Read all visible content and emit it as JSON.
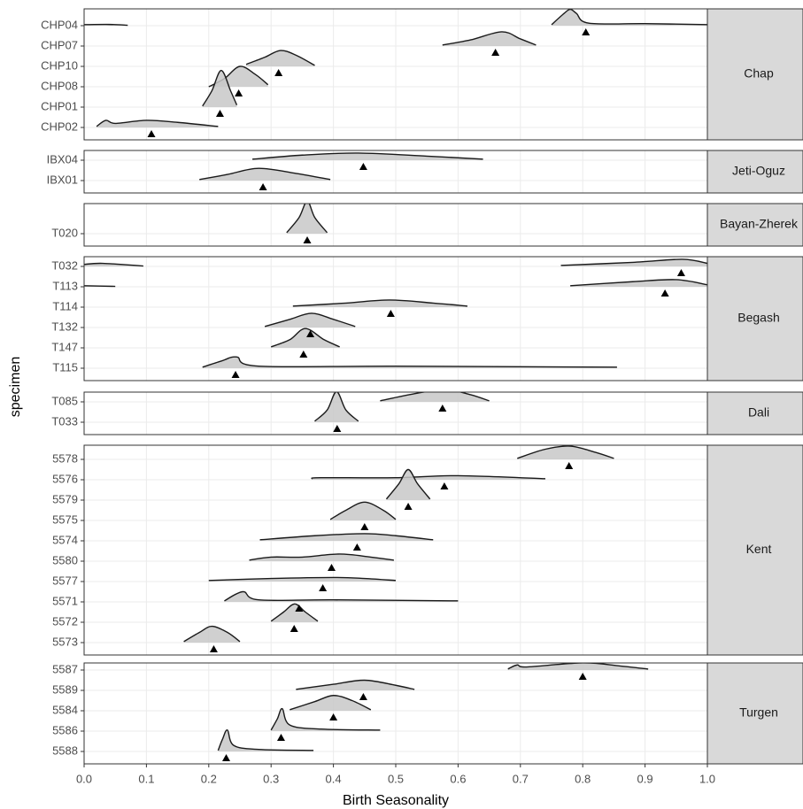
{
  "chart_data": {
    "type": "ridgeline",
    "x_label": "Birth Seasonality",
    "y_label": "specimen",
    "xlim": [
      0,
      1
    ],
    "xticks": [
      {
        "value": 0,
        "label": "0.0"
      },
      0.1,
      0.2,
      0.3,
      0.4,
      0.5,
      0.6,
      0.7,
      0.8,
      0.9,
      {
        "value": 1,
        "label": "1.0"
      }
    ],
    "grid": true,
    "fill_color": "#c8c8c8",
    "line_color": "#1a1a1a",
    "facets": [
      {
        "name": "Chap",
        "specimens": [
          {
            "name": "CHP04",
            "ridge_x": [
              0,
              0.04,
              0.07,
              null,
              0.75,
              0.77,
              0.78,
              0.79,
              0.81,
              0.9,
              1.0
            ],
            "ridge_h": [
              0.05,
              0.06,
              0.02,
              null,
              0.05,
              0.6,
              0.8,
              0.6,
              0.12,
              0.1,
              0.05
            ],
            "point": 0.805
          },
          {
            "name": "CHP07",
            "ridge_x": [
              0.575,
              0.62,
              0.67,
              0.7,
              0.725
            ],
            "ridge_h": [
              0.05,
              0.3,
              0.7,
              0.35,
              0.05
            ],
            "point": 0.66
          },
          {
            "name": "CHP10",
            "ridge_x": [
              0.26,
              0.29,
              0.315,
              0.34,
              0.37
            ],
            "ridge_h": [
              0.1,
              0.45,
              0.78,
              0.55,
              0.05
            ],
            "point": 0.312
          },
          {
            "name": "CHP08",
            "ridge_x": [
              0.2,
              0.225,
              0.25,
              0.275,
              0.295
            ],
            "ridge_h": [
              0.0,
              0.4,
              1.0,
              0.6,
              0.1
            ],
            "point": 0.248
          },
          {
            "name": "CHP01",
            "ridge_x": [
              0.19,
              0.205,
              0.22,
              0.235,
              0.245
            ],
            "ridge_h": [
              0.05,
              0.8,
              1.8,
              0.8,
              0.1
            ],
            "point": 0.218
          },
          {
            "name": "CHP02",
            "ridge_x": [
              0.02,
              0.035,
              0.05,
              0.1,
              0.15,
              0.215
            ],
            "ridge_h": [
              0.05,
              0.35,
              0.2,
              0.35,
              0.25,
              0.05
            ],
            "point": 0.108
          }
        ]
      },
      {
        "name": "Jeti-Oguz",
        "specimens": [
          {
            "name": "IBX04",
            "ridge_x": [
              0.27,
              0.35,
              0.44,
              0.55,
              0.64
            ],
            "ridge_h": [
              0.05,
              0.25,
              0.35,
              0.2,
              0.05
            ],
            "point": 0.448
          },
          {
            "name": "IBX01",
            "ridge_x": [
              0.185,
              0.23,
              0.28,
              0.34,
              0.395
            ],
            "ridge_h": [
              0.05,
              0.3,
              0.6,
              0.35,
              0.05
            ],
            "point": 0.287
          }
        ]
      },
      {
        "name": "Bayan-Zherek",
        "specimens": [
          {
            "name": "T020",
            "ridge_x": [
              0.325,
              0.345,
              0.358,
              0.37,
              0.39
            ],
            "ridge_h": [
              0.05,
              0.8,
              1.6,
              0.8,
              0.05
            ],
            "point": 0.358
          }
        ]
      },
      {
        "name": "Begash",
        "specimens": [
          {
            "name": "T032",
            "ridge_x": [
              0,
              0.03,
              0.095,
              null,
              0.765,
              0.88,
              0.96,
              1.0
            ],
            "ridge_h": [
              0.1,
              0.15,
              0.02,
              null,
              0.05,
              0.2,
              0.35,
              0.15
            ],
            "point": 0.958
          },
          {
            "name": "T113",
            "ridge_x": [
              0,
              0.05,
              null,
              0.78,
              0.88,
              0.95,
              1.0
            ],
            "ridge_h": [
              0.05,
              0.02,
              null,
              0.05,
              0.25,
              0.35,
              0.1
            ],
            "point": 0.932
          },
          {
            "name": "T114",
            "ridge_x": [
              0.335,
              0.42,
              0.49,
              0.56,
              0.615
            ],
            "ridge_h": [
              0.05,
              0.2,
              0.35,
              0.2,
              0.05
            ],
            "point": 0.492
          },
          {
            "name": "T132",
            "ridge_x": [
              0.29,
              0.33,
              0.365,
              0.4,
              0.435
            ],
            "ridge_h": [
              0.05,
              0.4,
              0.7,
              0.4,
              0.05
            ],
            "point": 0.363
          },
          {
            "name": "T147",
            "ridge_x": [
              0.3,
              0.33,
              0.355,
              0.385,
              0.41
            ],
            "ridge_h": [
              0.05,
              0.4,
              0.95,
              0.4,
              0.05
            ],
            "point": 0.352
          },
          {
            "name": "T115",
            "ridge_x": [
              0.19,
              0.22,
              0.245,
              0.28,
              0.5,
              0.855
            ],
            "ridge_h": [
              0.05,
              0.35,
              0.55,
              0.1,
              0.1,
              0.05
            ],
            "point": 0.243
          }
        ]
      },
      {
        "name": "Dali",
        "specimens": [
          {
            "name": "T085",
            "ridge_x": [
              0.475,
              0.53,
              0.58,
              0.62,
              0.65
            ],
            "ridge_h": [
              0.05,
              0.4,
              0.6,
              0.35,
              0.05
            ],
            "point": 0.575
          },
          {
            "name": "T033",
            "ridge_x": [
              0.37,
              0.39,
              0.405,
              0.42,
              0.44
            ],
            "ridge_h": [
              0.05,
              0.6,
              1.5,
              0.6,
              0.05
            ],
            "point": 0.406
          }
        ]
      },
      {
        "name": "Kent",
        "specimens": [
          {
            "name": "5578",
            "ridge_x": [
              0.695,
              0.74,
              0.78,
              0.82,
              0.85
            ],
            "ridge_h": [
              0.05,
              0.5,
              0.65,
              0.35,
              0.05
            ],
            "point": 0.778
          },
          {
            "name": "5576",
            "ridge_x": [
              0.365,
              0.38,
              0.5,
              0.6,
              0.74
            ],
            "ridge_h": [
              0.05,
              0.1,
              0.1,
              0.2,
              0.05
            ],
            "point": 0.578
          },
          {
            "name": "5579",
            "ridge_x": [
              0.485,
              0.505,
              0.52,
              0.535,
              0.555
            ],
            "ridge_h": [
              0.05,
              0.8,
              1.5,
              0.8,
              0.05
            ],
            "point": 0.52
          },
          {
            "name": "5575",
            "ridge_x": [
              0.395,
              0.42,
              0.45,
              0.48,
              0.5
            ],
            "ridge_h": [
              0.05,
              0.5,
              0.9,
              0.5,
              0.05
            ],
            "point": 0.45
          },
          {
            "name": "5574",
            "ridge_x": [
              0.282,
              0.37,
              0.45,
              0.5,
              0.56
            ],
            "ridge_h": [
              0.05,
              0.25,
              0.35,
              0.25,
              0.05
            ],
            "point": 0.438
          },
          {
            "name": "5580",
            "ridge_x": [
              0.265,
              0.3,
              0.35,
              0.41,
              0.46,
              0.497
            ],
            "ridge_h": [
              0.05,
              0.2,
              0.2,
              0.35,
              0.2,
              0.05
            ],
            "point": 0.397
          },
          {
            "name": "5577",
            "ridge_x": [
              0.2,
              0.3,
              0.4,
              0.45,
              0.5
            ],
            "ridge_h": [
              0.05,
              0.15,
              0.2,
              0.15,
              0.05
            ],
            "point": 0.383
          },
          {
            "name": "5571",
            "ridge_x": [
              0.225,
              0.255,
              0.28,
              0.4,
              0.6
            ],
            "ridge_h": [
              0.05,
              0.5,
              0.1,
              0.1,
              0.05
            ],
            "point": 0.345
          },
          {
            "name": "5572",
            "ridge_x": [
              0.3,
              0.32,
              0.338,
              0.355,
              0.375
            ],
            "ridge_h": [
              0.05,
              0.5,
              0.9,
              0.5,
              0.05
            ],
            "point": 0.337
          },
          {
            "name": "5573",
            "ridge_x": [
              0.16,
              0.185,
              0.205,
              0.23,
              0.25
            ],
            "ridge_h": [
              0.05,
              0.5,
              0.8,
              0.5,
              0.05
            ],
            "point": 0.208
          }
        ]
      },
      {
        "name": "Turgen",
        "specimens": [
          {
            "name": "5587",
            "ridge_x": [
              0.68,
              0.695,
              0.71,
              0.8,
              0.86,
              0.905
            ],
            "ridge_h": [
              0.05,
              0.25,
              0.15,
              0.35,
              0.2,
              0.05
            ],
            "point": 0.8
          },
          {
            "name": "5589",
            "ridge_x": [
              0.34,
              0.4,
              0.45,
              0.5,
              0.53
            ],
            "ridge_h": [
              0.05,
              0.3,
              0.5,
              0.25,
              0.05
            ],
            "point": 0.448
          },
          {
            "name": "5584",
            "ridge_x": [
              0.33,
              0.37,
              0.4,
              0.43,
              0.46
            ],
            "ridge_h": [
              0.05,
              0.45,
              0.75,
              0.5,
              0.05
            ],
            "point": 0.4
          },
          {
            "name": "5586",
            "ridge_x": [
              0.3,
              0.31,
              0.318,
              0.33,
              0.38,
              0.475
            ],
            "ridge_h": [
              0.05,
              0.6,
              1.1,
              0.3,
              0.1,
              0.05
            ],
            "point": 0.316
          },
          {
            "name": "5588",
            "ridge_x": [
              0.215,
              0.222,
              0.23,
              0.24,
              0.28,
              0.368
            ],
            "ridge_h": [
              0.05,
              0.6,
              1.05,
              0.3,
              0.1,
              0.05
            ],
            "point": 0.228
          }
        ]
      }
    ]
  }
}
